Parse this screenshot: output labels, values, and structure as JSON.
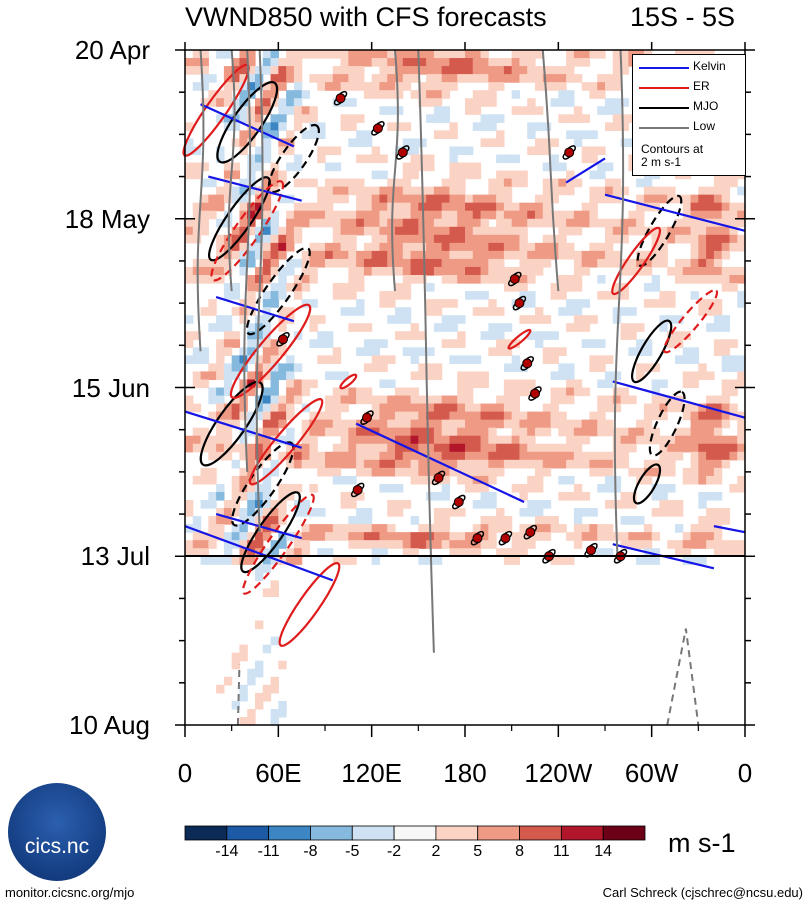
{
  "header": {
    "title": "VWND850 with CFS forecasts",
    "region": "15S - 5S"
  },
  "chart_data": {
    "type": "heatmap",
    "title": "VWND850 with CFS forecasts",
    "subtitle": "15S - 5S",
    "xlabel": "",
    "ylabel": "",
    "x_tick_labels": [
      "0",
      "60E",
      "120E",
      "180",
      "120W",
      "60W",
      "0"
    ],
    "x_range": [
      0,
      360
    ],
    "y_tick_labels": [
      "20 Apr",
      "18 May",
      "15 Jun",
      "13 Jul",
      "10 Aug"
    ],
    "y_day_offsets": [
      0,
      28,
      56,
      84,
      112
    ],
    "forecast_start_label": "13 Jul",
    "colorbar": {
      "units": "m s-1",
      "labels": [
        "-14",
        "-11",
        "-8",
        "-5",
        "-2",
        "2",
        "5",
        "8",
        "11",
        "14"
      ],
      "colors": [
        "#0b2a56",
        "#1c5aa5",
        "#3d86c4",
        "#86b9de",
        "#cfe2f3",
        "#f7f7f7",
        "#fbd3c4",
        "#ef9a84",
        "#d55a4e",
        "#b2162b",
        "#6b0016"
      ]
    },
    "legend": {
      "items": [
        {
          "label": "Kelvin",
          "color": "#1515e6"
        },
        {
          "label": "ER",
          "color": "#e01b1b"
        },
        {
          "label": "MJO",
          "color": "#000000"
        },
        {
          "label": "Low",
          "color": "#777777"
        }
      ],
      "note_line1": "Contours at",
      "note_line2": "2 m s-1"
    },
    "tropical_cyclones": [
      {
        "lon": 100,
        "day": 8
      },
      {
        "lon": 124,
        "day": 13
      },
      {
        "lon": 140,
        "day": 17
      },
      {
        "lon": 247,
        "day": 17
      },
      {
        "lon": 63,
        "day": 48
      },
      {
        "lon": 117,
        "day": 61
      },
      {
        "lon": 111,
        "day": 73
      },
      {
        "lon": 163,
        "day": 71
      },
      {
        "lon": 176,
        "day": 75
      },
      {
        "lon": 212,
        "day": 38
      },
      {
        "lon": 215,
        "day": 42
      },
      {
        "lon": 220,
        "day": 52
      },
      {
        "lon": 225,
        "day": 57
      },
      {
        "lon": 188,
        "day": 81
      },
      {
        "lon": 206,
        "day": 81
      },
      {
        "lon": 222,
        "day": 80
      },
      {
        "lon": 234,
        "day": 84
      },
      {
        "lon": 261,
        "day": 83
      },
      {
        "lon": 280,
        "day": 84
      }
    ]
  },
  "footer": {
    "logo_text": "cics.nc",
    "website": "monitor.cicsnc.org/mjo",
    "credit": "Carl Schreck (cjschrec@ncsu.edu)"
  }
}
